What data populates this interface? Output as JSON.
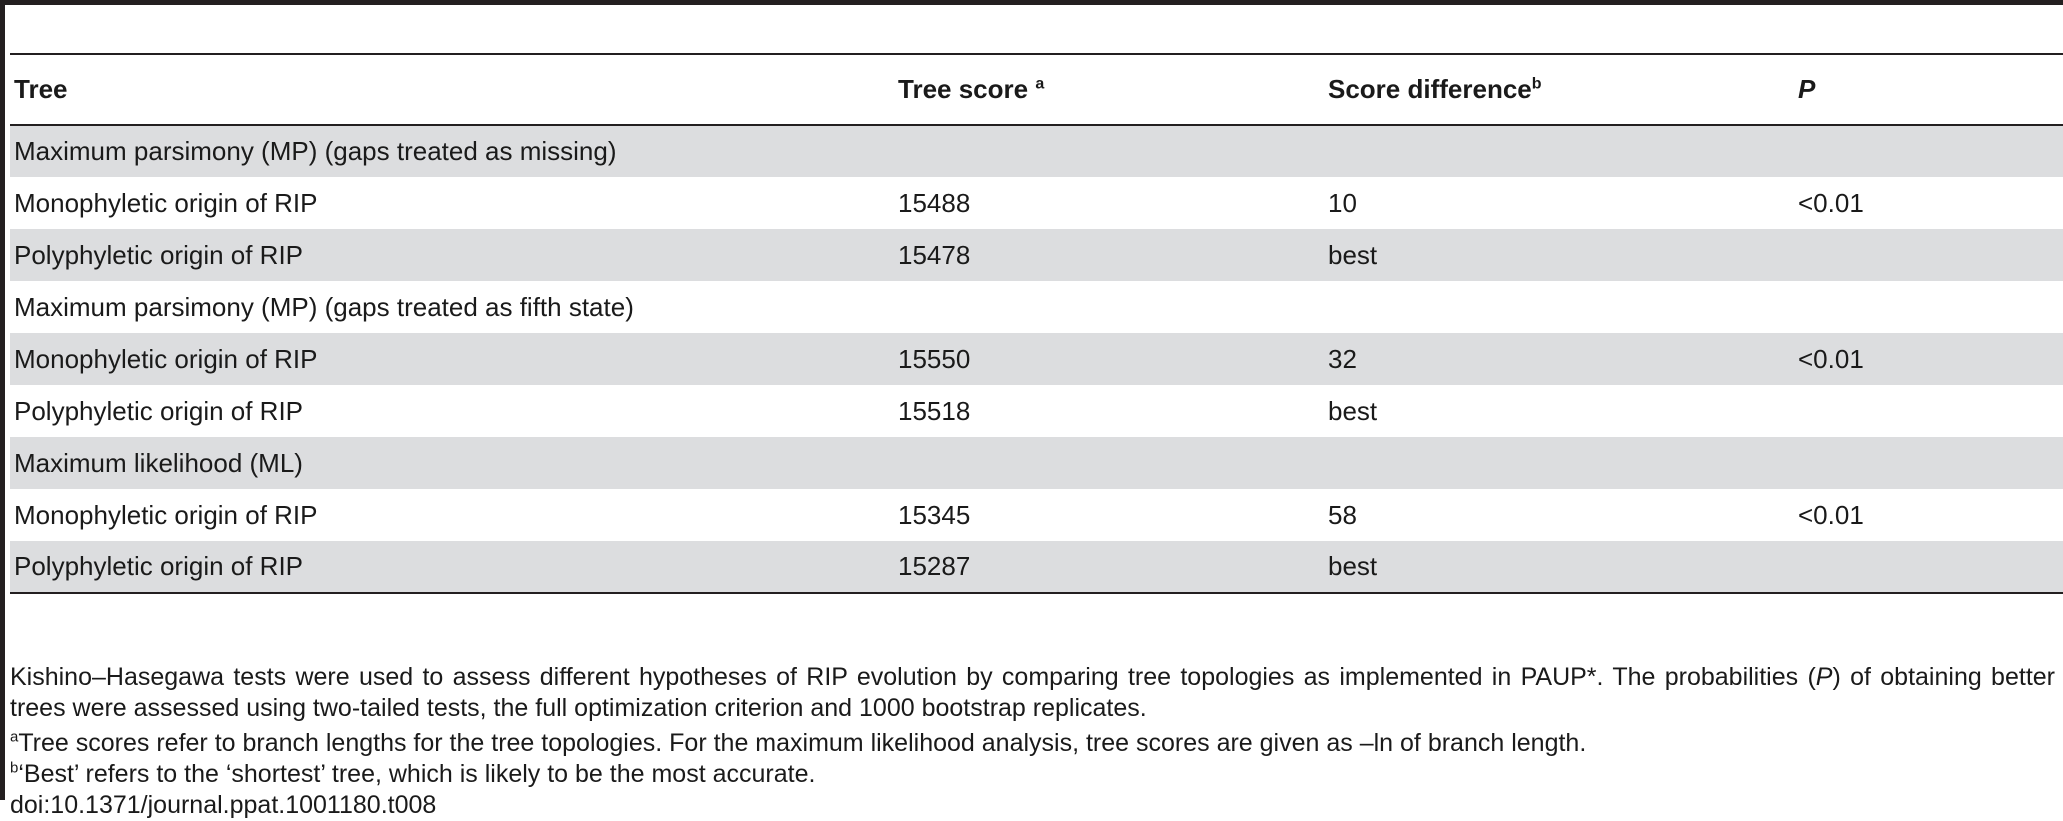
{
  "table": {
    "headers": {
      "tree": "Tree",
      "tree_score": "Tree score",
      "tree_score_note": "a",
      "score_difference": "Score difference",
      "score_difference_note": "b",
      "p": "P"
    },
    "rows": [
      {
        "tree": "Maximum parsimony (MP) (gaps treated as missing)",
        "score": "",
        "diff": "",
        "p": ""
      },
      {
        "tree": "Monophyletic origin of RIP",
        "score": "15488",
        "diff": "10",
        "p": "<0.01"
      },
      {
        "tree": "Polyphyletic origin of RIP",
        "score": "15478",
        "diff": "best",
        "p": ""
      },
      {
        "tree": "Maximum parsimony (MP) (gaps treated as fifth state)",
        "score": "",
        "diff": "",
        "p": ""
      },
      {
        "tree": "Monophyletic origin of RIP",
        "score": "15550",
        "diff": "32",
        "p": "<0.01"
      },
      {
        "tree": "Polyphyletic origin of RIP",
        "score": "15518",
        "diff": "best",
        "p": ""
      },
      {
        "tree": "Maximum likelihood (ML)",
        "score": "",
        "diff": "",
        "p": ""
      },
      {
        "tree": "Monophyletic origin of RIP",
        "score": "15345",
        "diff": "58",
        "p": "<0.01"
      },
      {
        "tree": "Polyphyletic origin of RIP",
        "score": "15287",
        "diff": "best",
        "p": ""
      }
    ]
  },
  "notes": {
    "description_part1": "Kishino–Hasegawa tests were used to assess different hypotheses of RIP evolution by comparing tree topologies as implemented in PAUP*. The probabilities (",
    "description_italic": "P",
    "description_part2": ") of obtaining better trees were assessed using two-tailed tests, the full optimization criterion and 1000 bootstrap replicates.",
    "footnote_a_mark": "a",
    "footnote_a": "Tree scores refer to branch lengths for the tree topologies. For the maximum likelihood analysis, tree scores are given as –ln of branch length.",
    "footnote_b_mark": "b",
    "footnote_b": "‘Best’ refers to the ‘shortest’ tree, which is likely to be the most accurate.",
    "doi": "doi:10.1371/journal.ppat.1001180.t008"
  }
}
